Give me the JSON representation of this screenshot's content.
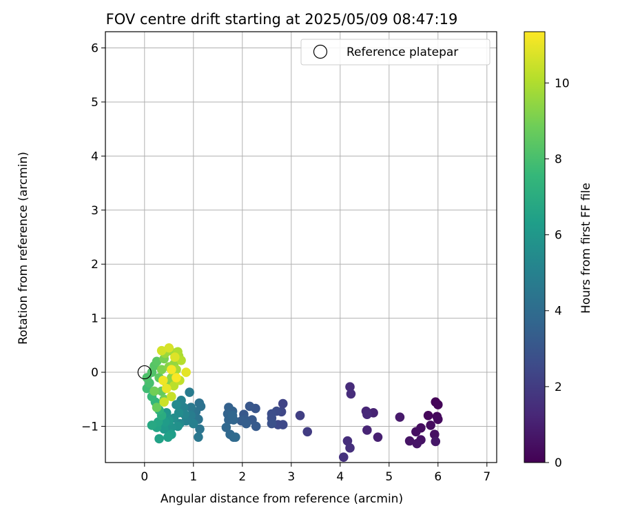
{
  "chart_data": {
    "type": "scatter",
    "title": "FOV centre drift starting at 2025/05/09 08:47:19",
    "xlabel": "Angular distance from reference (arcmin)",
    "ylabel": "Rotation from reference (arcmin)",
    "xlim": [
      -0.8,
      7.2
    ],
    "ylim": [
      -1.67,
      6.3
    ],
    "xticks": [
      0,
      1,
      2,
      3,
      4,
      5,
      6,
      7
    ],
    "yticks": [
      -1,
      0,
      1,
      2,
      3,
      4,
      5,
      6
    ],
    "grid": true,
    "legend": {
      "position": "top-right",
      "entries": [
        "Reference platepar"
      ]
    },
    "reference_point": {
      "name": "Reference platepar",
      "x": 0,
      "y": 0,
      "marker": "open-circle"
    },
    "colorbar": {
      "label": "Hours from first FF file",
      "range": [
        0,
        11.35
      ],
      "ticks": [
        0,
        2,
        4,
        6,
        8,
        10
      ],
      "colormap": "viridis"
    },
    "series": [
      {
        "name": "",
        "color_by": "hours",
        "points": [
          {
            "x": 5.95,
            "y": -0.55,
            "c": 0.1
          },
          {
            "x": 6.0,
            "y": -0.6,
            "c": 0.15
          },
          {
            "x": 5.8,
            "y": -0.8,
            "c": 0.2
          },
          {
            "x": 5.98,
            "y": -0.82,
            "c": 0.25
          },
          {
            "x": 6.0,
            "y": -0.87,
            "c": 0.3
          },
          {
            "x": 5.85,
            "y": -0.98,
            "c": 0.35
          },
          {
            "x": 5.65,
            "y": -1.03,
            "c": 0.4
          },
          {
            "x": 5.55,
            "y": -1.1,
            "c": 0.45
          },
          {
            "x": 5.93,
            "y": -1.15,
            "c": 0.5
          },
          {
            "x": 5.65,
            "y": -1.25,
            "c": 0.55
          },
          {
            "x": 5.42,
            "y": -1.27,
            "c": 0.6
          },
          {
            "x": 5.57,
            "y": -1.32,
            "c": 0.65
          },
          {
            "x": 5.95,
            "y": -1.28,
            "c": 0.7
          },
          {
            "x": 5.22,
            "y": -0.83,
            "c": 0.8
          },
          {
            "x": 4.77,
            "y": -1.2,
            "c": 1.0
          },
          {
            "x": 4.68,
            "y": -0.75,
            "c": 1.1
          },
          {
            "x": 4.55,
            "y": -1.07,
            "c": 1.15
          },
          {
            "x": 4.53,
            "y": -0.72,
            "c": 1.2
          },
          {
            "x": 4.55,
            "y": -0.78,
            "c": 1.3
          },
          {
            "x": 4.2,
            "y": -0.27,
            "c": 1.4
          },
          {
            "x": 4.22,
            "y": -0.4,
            "c": 1.45
          },
          {
            "x": 4.15,
            "y": -1.27,
            "c": 1.5
          },
          {
            "x": 4.2,
            "y": -1.4,
            "c": 1.55
          },
          {
            "x": 4.07,
            "y": -1.57,
            "c": 1.6
          },
          {
            "x": 3.33,
            "y": -1.1,
            "c": 2.0
          },
          {
            "x": 3.18,
            "y": -0.8,
            "c": 2.1
          },
          {
            "x": 2.83,
            "y": -0.58,
            "c": 2.3
          },
          {
            "x": 2.8,
            "y": -0.73,
            "c": 2.4
          },
          {
            "x": 2.83,
            "y": -0.97,
            "c": 2.5
          },
          {
            "x": 2.73,
            "y": -0.97,
            "c": 2.5
          },
          {
            "x": 2.7,
            "y": -0.72,
            "c": 2.6
          },
          {
            "x": 2.6,
            "y": -0.77,
            "c": 2.7
          },
          {
            "x": 2.6,
            "y": -0.85,
            "c": 2.75
          },
          {
            "x": 2.6,
            "y": -0.95,
            "c": 2.8
          },
          {
            "x": 2.27,
            "y": -0.67,
            "c": 3.0
          },
          {
            "x": 2.15,
            "y": -0.63,
            "c": 3.05
          },
          {
            "x": 2.03,
            "y": -0.78,
            "c": 3.1
          },
          {
            "x": 2.2,
            "y": -0.88,
            "c": 3.15
          },
          {
            "x": 2.28,
            "y": -1.0,
            "c": 3.2
          },
          {
            "x": 2.05,
            "y": -0.87,
            "c": 3.25
          },
          {
            "x": 1.98,
            "y": -0.9,
            "c": 3.3
          },
          {
            "x": 2.08,
            "y": -0.95,
            "c": 3.35
          },
          {
            "x": 1.72,
            "y": -0.65,
            "c": 3.5
          },
          {
            "x": 1.8,
            "y": -0.72,
            "c": 3.55
          },
          {
            "x": 1.7,
            "y": -0.77,
            "c": 3.6
          },
          {
            "x": 1.72,
            "y": -0.88,
            "c": 3.65
          },
          {
            "x": 1.82,
            "y": -0.88,
            "c": 3.7
          },
          {
            "x": 1.8,
            "y": -0.8,
            "c": 3.75
          },
          {
            "x": 1.67,
            "y": -1.02,
            "c": 3.8
          },
          {
            "x": 1.75,
            "y": -1.15,
            "c": 3.85
          },
          {
            "x": 1.82,
            "y": -1.2,
            "c": 3.9
          },
          {
            "x": 1.86,
            "y": -1.2,
            "c": 3.95
          },
          {
            "x": 1.12,
            "y": -0.57,
            "c": 4.2
          },
          {
            "x": 1.15,
            "y": -0.63,
            "c": 4.25
          },
          {
            "x": 1.05,
            "y": -0.73,
            "c": 4.3
          },
          {
            "x": 1.1,
            "y": -0.87,
            "c": 4.35
          },
          {
            "x": 1.13,
            "y": -1.05,
            "c": 4.4
          },
          {
            "x": 1.1,
            "y": -1.2,
            "c": 4.5
          },
          {
            "x": 0.95,
            "y": -0.65,
            "c": 4.6
          },
          {
            "x": 0.92,
            "y": -0.37,
            "c": 4.7
          },
          {
            "x": 0.95,
            "y": -0.8,
            "c": 4.8
          },
          {
            "x": 1.0,
            "y": -0.95,
            "c": 4.9
          },
          {
            "x": 0.85,
            "y": -0.9,
            "c": 5.0
          },
          {
            "x": 0.8,
            "y": -0.65,
            "c": 5.05
          },
          {
            "x": 0.75,
            "y": -0.52,
            "c": 5.1
          },
          {
            "x": 0.82,
            "y": -0.78,
            "c": 5.2
          },
          {
            "x": 0.72,
            "y": -0.95,
            "c": 5.3
          },
          {
            "x": 0.65,
            "y": -0.6,
            "c": 5.4
          },
          {
            "x": 0.7,
            "y": -0.75,
            "c": 5.5
          },
          {
            "x": 0.6,
            "y": -0.85,
            "c": 5.6
          },
          {
            "x": 0.68,
            "y": -1.0,
            "c": 5.7
          },
          {
            "x": 0.55,
            "y": -1.02,
            "c": 5.8
          },
          {
            "x": 0.45,
            "y": -0.75,
            "c": 5.9
          },
          {
            "x": 0.5,
            "y": -0.9,
            "c": 6.0
          },
          {
            "x": 0.4,
            "y": -1.05,
            "c": 6.1
          },
          {
            "x": 0.42,
            "y": -0.92,
            "c": 6.2
          },
          {
            "x": 0.55,
            "y": -1.15,
            "c": 6.3
          },
          {
            "x": 0.48,
            "y": -1.2,
            "c": 6.4
          },
          {
            "x": 0.3,
            "y": -1.23,
            "c": 6.5
          },
          {
            "x": 0.25,
            "y": -1.02,
            "c": 6.6
          },
          {
            "x": 0.28,
            "y": -0.92,
            "c": 6.7
          },
          {
            "x": 0.15,
            "y": -0.98,
            "c": 6.8
          },
          {
            "x": 0.35,
            "y": -0.8,
            "c": 7.0
          },
          {
            "x": 0.3,
            "y": -0.7,
            "c": 7.2
          },
          {
            "x": 0.22,
            "y": -0.55,
            "c": 7.4
          },
          {
            "x": 0.15,
            "y": -0.45,
            "c": 7.6
          },
          {
            "x": 0.05,
            "y": -0.3,
            "c": 7.8
          },
          {
            "x": 0.1,
            "y": -0.2,
            "c": 8.0
          },
          {
            "x": 0.05,
            "y": -0.1,
            "c": 8.1
          },
          {
            "x": 0.15,
            "y": 0.0,
            "c": 8.2
          },
          {
            "x": 0.2,
            "y": 0.12,
            "c": 8.3
          },
          {
            "x": 0.25,
            "y": 0.2,
            "c": 8.4
          },
          {
            "x": 0.3,
            "y": -0.1,
            "c": 8.5
          },
          {
            "x": 0.35,
            "y": -0.35,
            "c": 8.6
          },
          {
            "x": 0.25,
            "y": -0.65,
            "c": 8.7
          },
          {
            "x": 0.4,
            "y": -0.5,
            "c": 8.8
          },
          {
            "x": 0.2,
            "y": -0.35,
            "c": 8.9
          },
          {
            "x": 0.4,
            "y": 0.25,
            "c": 9.0
          },
          {
            "x": 0.35,
            "y": 0.05,
            "c": 9.1
          },
          {
            "x": 0.45,
            "y": -0.2,
            "c": 9.2
          },
          {
            "x": 0.5,
            "y": 0.1,
            "c": 9.3
          },
          {
            "x": 0.55,
            "y": -0.1,
            "c": 9.4
          },
          {
            "x": 0.6,
            "y": 0.15,
            "c": 9.5
          },
          {
            "x": 0.42,
            "y": 0.35,
            "c": 9.6
          },
          {
            "x": 0.52,
            "y": 0.4,
            "c": 9.7
          },
          {
            "x": 0.65,
            "y": 0.05,
            "c": 9.8
          },
          {
            "x": 0.7,
            "y": 0.3,
            "c": 9.9
          },
          {
            "x": 0.68,
            "y": 0.38,
            "c": 10.0
          },
          {
            "x": 0.75,
            "y": 0.22,
            "c": 10.1
          },
          {
            "x": 0.6,
            "y": -0.25,
            "c": 10.2
          },
          {
            "x": 0.72,
            "y": -0.15,
            "c": 10.3
          },
          {
            "x": 0.55,
            "y": -0.45,
            "c": 10.4
          },
          {
            "x": 0.4,
            "y": -0.55,
            "c": 10.5
          },
          {
            "x": 0.35,
            "y": 0.4,
            "c": 10.6
          },
          {
            "x": 0.5,
            "y": 0.45,
            "c": 10.7
          },
          {
            "x": 0.62,
            "y": 0.28,
            "c": 10.8
          },
          {
            "x": 0.85,
            "y": 0.0,
            "c": 10.9
          },
          {
            "x": 0.45,
            "y": -0.3,
            "c": 11.0
          },
          {
            "x": 0.38,
            "y": -0.15,
            "c": 11.1
          },
          {
            "x": 0.55,
            "y": 0.05,
            "c": 11.2
          },
          {
            "x": 0.65,
            "y": -0.1,
            "c": 11.3
          }
        ]
      }
    ]
  }
}
